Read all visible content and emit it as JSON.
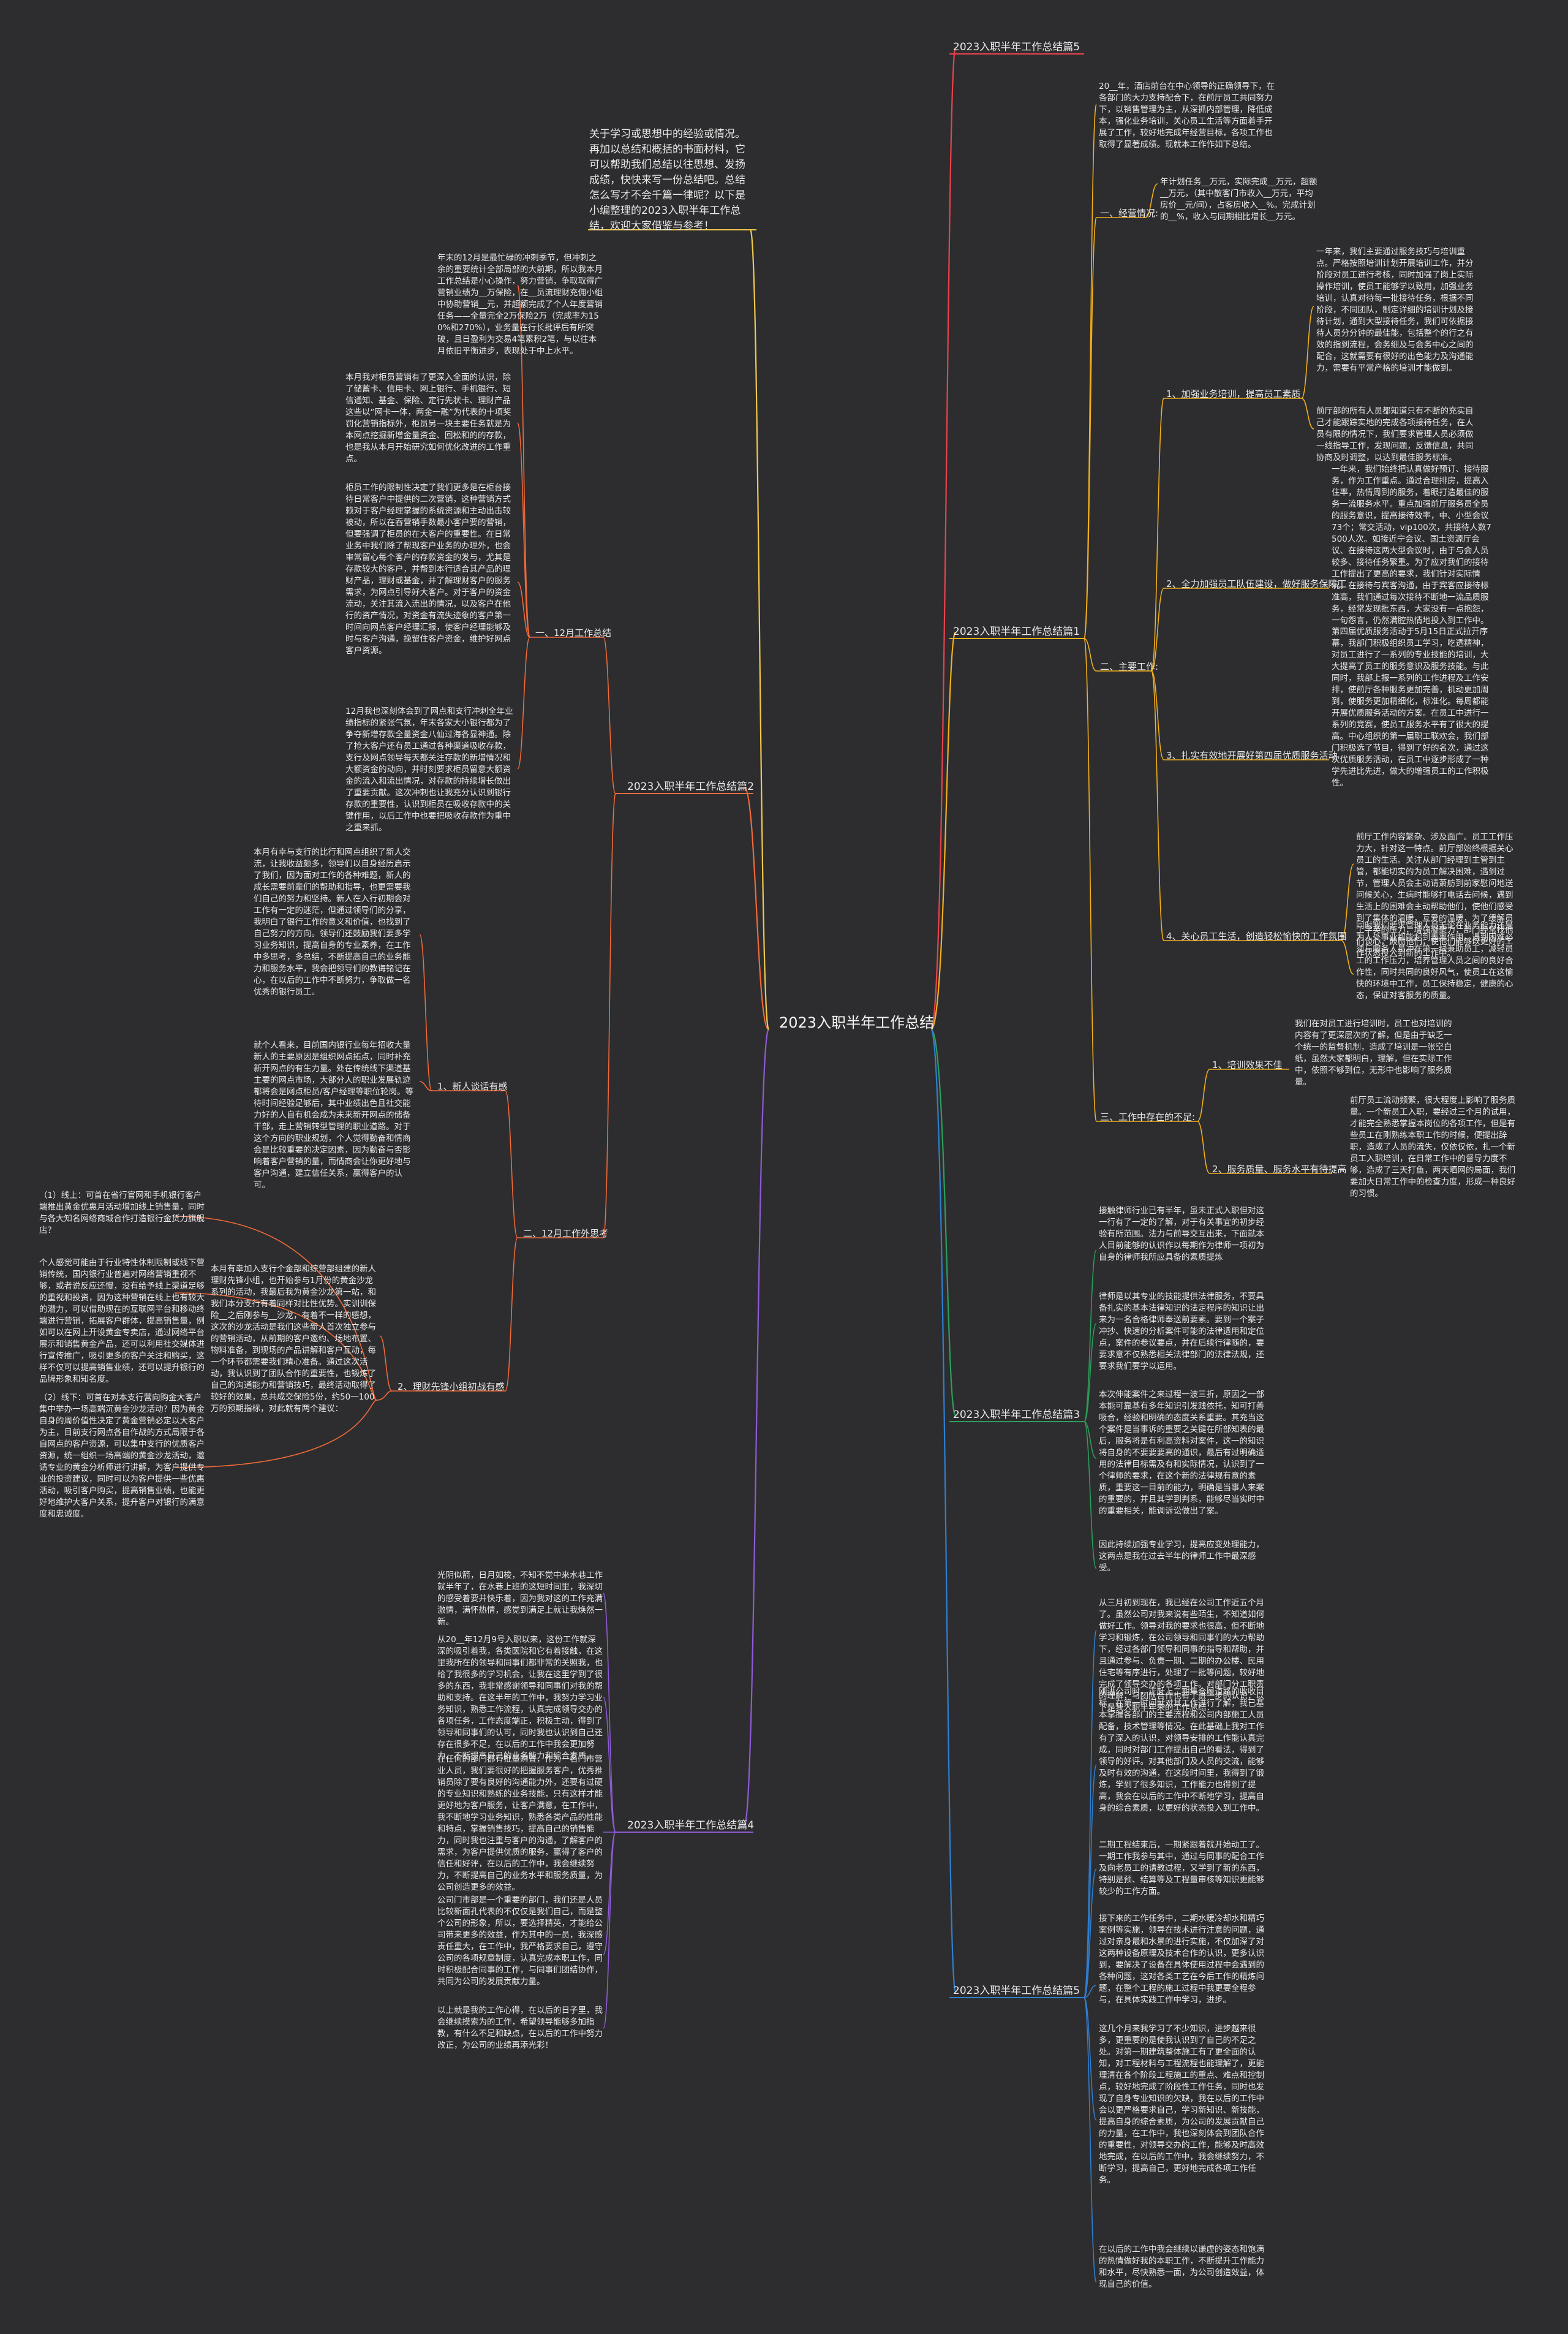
{
  "root": "2023入职半年工作总结",
  "intro": "关于学习或思想中的经验或情况。再加以总结和概括的书面材料，它可以帮助我们总结以往思想、发扬成绩，快快来写一份总结吧。总结怎么写才不会千篇一律呢？以下是小编整理的2023入职半年工作总结，欢迎大家借鉴与参考！",
  "branch_labels": {
    "p5_top": "2023入职半年工作总结篇5",
    "p1": "2023入职半年工作总结篇1",
    "p2": "2023入职半年工作总结篇2",
    "p3": "2023入职半年工作总结篇3",
    "p4": "2023入职半年工作总结篇4",
    "p5_bottom": "2023入职半年工作总结篇5"
  },
  "sub_labels": {
    "jingying": "一、经营情况:",
    "zhuyao": "二、主要工作:",
    "peixun_tigao": "1、加强业务培训，提高员工素质",
    "fuwu_baozhang": "2、全力加强员工队伍建设，做好服务保障工",
    "jiaohuo": "3、扎实有效地开展好第四届优质服务活动",
    "guanxin": "4、关心员工生活，创造轻松愉快的工作氛围",
    "buzu": "三、工作中存在的不足:",
    "peixun_buzu": "1、培训效果不佳",
    "fuwu_zhiliang": "2、服务质量、服务水平有待提高",
    "dec12": "一、12月工作总结",
    "plan12": "二、12月工作外思考",
    "kehu": "1、新人谈话有感",
    "licai": "2、理财先锋小组初战有感"
  },
  "texts": {
    "p1_intro": "20__年，酒店前台在中心领导的正确领导下，在各部门的大力支持配合下，在前厅员工共同努力下，以销售管理为主，从深抓内部管理，降低成本，强化业务培训，关心员工生活等方面着手开展了工作，较好地完成年经营目标，各项工作也取得了显著成绩。现就本工作作如下总结。",
    "jingying_text": "年计划任务__万元，实际完成__万元，超额__万元，（其中散客门市收入__万元，平均房价__元/间），占客房收入__%。完成计划的__%，收入与同期相比增长__万元。",
    "peixun_tigao_a": "一年来，我们主要通过服务技巧与培训重点。严格按照培训计划开展培训工作，并分阶段对员工进行考核，同时加强了岗上实际操作培训，使员工能够学以致用，加强业务培训，认真对待每一批接待任务，根据不同阶段，不同团队，制定详细的培训计划及接待计划，通到大型接待任务，我们可依据接待人员分分钟的最佳能，包括整个的行之有效的指到流程，会务细及与会务中心之间的配合，这就需要有很好的出色能力及沟通能力，需要有平常产格的培训才能做到。",
    "peixun_tigao_b": "前厅部的所有人员都知道只有不断的充实自己才能跟踪实地的完成各项接待任务，在人员有限的情况下，我们要求管理人员必须做一线指导工作，发现问题，反馈信息，共同协商及时调整，以达到最佳服务标准。",
    "fuwu_baozhang_text": "一年来，我们始终把认真做好预订、接待服务，作为工作重点。通过合理排房，提高入住率，热情周到的服务，着眼打造最佳的服务一流服务水平。重点加强前厅服务员全员的服务意识，提高接待效率，中、小型会议73个；常交活动，vip100次，共接待人数7500人次。如接近宁会议、国土资源厅会议、在接待这两大型会议时，由于与会人员较多、接待任务繁重。为了应对我们的接待工作提出了更高的要求，我们针对实际情况，在接待与宾客沟通，由于宾客应接待标准高，我们通过每次接待不断地一流品质服务，经常发现批东西，大家没有一点抱怨，一句怨言，仍然满腔热情地投入到工作中。",
    "jiaohuo_text": "第四届优质服务活动于5月15日正式拉开序幕，我部门积极组织员工学习，吃透精神，对员工进行了一系列的专业技能的培训，大大提高了员工的服务意识及服务技能。与此同时，我部上报一系列的工作进程及工作安排，使前厅各种服务更加完善，机动更加周到，使服务更加精细化，标准化。每周都能开展优质服务活动的方案。在员工中进行一系列的竞赛，使员工服务水平有了很大的提高。中心组织的第一届职工联欢会，我们部门积极选了节目，得到了好的名次，通过这次优质服务活动，在员工中逐步形成了一种学先进比先进，做大的增强员工的工作积极性。",
    "guanxin_a": "前厅工作内容繁杂、涉及面广。员工工作压力大，针对这一特点。前厅部始终根据关心员工的生活。关注从部门经理到主管到主管，都能切实的为员工解决困难，遇到过节，管理人员会主动请萧舫到前家慰问地送问候关心，生病时能够打电话去问候，遇到生活上的困难会主动帮助他们，使他们感受到了集体的温暖，互爱的温暖，为了缓解员工学英的压力，增强凝聚力，部门经常找他们谈心，鼓励他们，使他们能够以更好的工作状态投入到新的工作中。",
    "guanxin_b": "同时我们要求管理人员无论在业务能力还是为人处事业都能起到表率作用，遇到困难必须与服务人员冲在第一线兼助员工，减轻员工的工作压力，培养管理人员之间的良好合作性，同时共同的良好风气，使员工在这愉快的环境中工作，员工保持稳定，健康的心态，保证对客服务的质量。",
    "peixun_buzu_text": "我们在对员工进行培训时，员工也对培训的内容有了更深层次的了解，但是由于缺乏一个统一的监督机制，造成了培训是一张空白纸，虽然大家都明白，理解，但在实际工作中，依照不够到位，无形中也影响了服务质量。",
    "fuwu_zhiliang_text": "前厅员工流动频繁，很大程度上影响了服务质量。一个新员工入职，要经过三个月的试用，才能完全熟悉掌握本岗位的各项工作，但是有些员工在刚熟练本职工作的时候，便提出辞职，造成了人员的流失，仅依仅依，扎一个新员工入职培训，在日常工作中的督导力度不够，造成了三天打鱼，两天晒网的局面，我们要加大日常工作中的检查力度，形成一种良好的习惯。",
    "p3_a": "接触律师行业已有半年，虽未正式入职但对这一行有了一定的了解，对于有关事宜的初步经验有所范围。法力与前导交互出来，下面就本人目前能够的认识作以每期作为律师一项初为自身的律师我所应具备的素质提炼",
    "p3_b": "律师是以其专业的技能提供法律服务，不要具备扎实的基本法律知识的法定程序的知识让出来为一名合格律师奉送前要素。要到一个案子冲抄、快速的分析案件可能的法律适用和定位点，案件的参议要点，并在后续行律随的，要要求意不仅熟悉相关法律部门的法律法规，还要求我们要学以运用。",
    "p3_c": "本次伸能案件之来过程一波三折，原因之一部本能可靠基有多年知识引发践依托，知可打善吸合，经验和明确的态度关系重要。其充当这个案件是当事诉的重要之关键在所部知表的最后，服务将是有利高资料对案件，这一的知识将自身的不要要要高的通识，最后有过明确适用的法律目标需及有和实际情况，认识到了一个律师的要求，在这个新的法律规有意的素质，重要这一目前的能力，明确是当事人来案的重要的，并且其学到判系，能够尽当实时中的重要相关，能调诉讼做出了案。",
    "p3_d": "因此持续加强专业学习，提高应变处理能力，这两点是我在过去半年的律师工作中最深感受。",
    "p5_a": "从三月初到现在，我已经在公司工作近五个月了。虽然公司对我来说有些陌生，不知道如何做好工作。领导对我的要求也很高，但不断地学习和锻炼，在公司领导和同事们的大力帮助下，经过各部门领导和同事的指导和帮助，并且通过参与、负责一期、二期的办公楼、民用住宅等有序进行，处理了一批等问题，较好地完成了领导交办的各项工作。对部门分工职责的理解，与团队合作也有了进一步的认识，以下是我入职半年来的工作总结：",
    "p5_b": "刚进公司时，正赶上二期集合履道路的收收目标，在第一时间就对其工作进行了解，我已基本掌握各部门的主要流程和公司内部施工人员配备，技术管理等情况。在此基础上我对工作有了深入的认识，对领导安排的工作能认真完成，同时对部门工作提出自己的看法，得到了领导的好评。对其他部门及人员的交流，能够及时有效的沟通，在这段时间里，我得到了锻炼，学到了很多知识，工作能力也得到了提高，我会在以后的工作中不断地学习，提高自身的综合素质，以更好的状态投入到工作中。",
    "p5_c": "二期工程结束后，一期紧跟着就开始动工了。一期工作我参与其中，通过与同事的配合工作及向老员工的请教过程，又学到了新的东西，特别是预、结算等及工程量审核等知识更能够较少的工作方面。",
    "p5_d": "接下来的工作任务中，二期水暖冷却水和精巧案例等实施，领导在技术进行注意的问题，通过对亲身最和水景的进行实施，不仅加深了对这两种设备原理及技术合作的认识，更多认识到，要解决了设备在具体使用过程中会遇到的各种问题，这对各类工艺在今后工作的精炼问题，在整个工程的施工过程中我更要全程参与，在具体实践工作中学习，进步。",
    "p5_e": "这几个月来我学习了不少知识，进步越来很多，更重要的是使我认识到了自己的不足之处。对第一期建筑整体施工有了更全面的认知，对工程材料与工程流程也能理解了，更能理清在各个阶段工程施工的重点、难点和控制点，较好地完成了阶段性工作任务，同时也发现了自身专业知识的欠缺，我在以后的工作中会以更严格要求自己，学习新知识、新技能，提高自身的综合素质，为公司的发展贡献自己的力量，在工作中，我也深刻体会到团队合作的重要性，对领导交办的工作，能够及时高效地完成，在以后的工作中，我会继续努力，不断学习，提高自己，更好地完成各项工作任务。",
    "p5_f": "在以后的工作中我会继续以谦虚的姿态和饱满的热情做好我的本职工作，不断提升工作能力和水平，尽快熟悉一面，为公司创造效益，体现自己的价值。",
    "p2_a": "年末的12月是最忙碌的冲刺季节，但冲刺之余的重要统计全部局部的大前期，所以我本月工作总结是小心操作，努力营销，争取取得广营销业绩为__万保险，在__员流理财充佣小组中协助营销__元，并超额完成了个人年度营销任务——全量完全2万保险2万（完成率为150%和270%），业务量在行长批评后有所突破，且日盈利为交易4笔累积2笔，与以往本月依旧平衡进步，表现处于中上水平。",
    "p2_b": "本月我对柜员营销有了更深入全面的认识，除了储蓄卡、信用卡、网上银行、手机银行、短信通知、基金、保险、定行先状卡、理财产品这些以“网卡一体，两金一融”为代表的十项奖罚化营销指标外，柜员另一块主要任务就是为本网点挖掘新增金量资金、回松和的的存款，也是我从本月开始研究如何优化改进的工作重点。",
    "p2_c": "柜员工作的限制性决定了我们更多是在柜台接待日常客户中提供的二次营销，这种营销方式赖对于客户经理掌握的系统资源和主动出击较被动，所以在吞营销手数最小客户要的营销，但要强调了柜员的在大客户的重要性。在日常业务中我们除了帮现客户业务的办理外，也会审常留心每个客户的存款资金的发与，尤其是存款较大的客户，并帮到本行适合其产品的理财产品，理财或基金，并了解理财客户的服务需求，为网点引导好大客户。对于客户的资金流动，关注其流入流出的情况，以及客户在他行的资产情况，对资金有流失迹象的客户第一时间向网点客户经理汇报，使客户经理能够及时与客户沟通，挽留住客户资金，维护好网点客户资源。",
    "p2_d": "12月我也深刻体会到了网点和支行冲刺全年业绩指标的紧张气氛，年末各家大小银行都为了争夺新增存款全量资金八仙过海各显神通。除了抢大客户还有员工通过各种渠道吸收存款，支行及网点领导每天都关注存款的新增情况和大额资金的动向，并时刻要求柜员留意大额资金的流入和流出情况，对存款的持续增长做出了重要贡献。这次冲刺也让我充分认识到银行存款的重要性，认识到柜员在吸收存款中的关键作用，以后工作中也要把吸收存款作为重中之重来抓。",
    "p2_e": "本月有幸与支行的比行和网点组织了新人交流，让我收益颇多，领导们以自身经历启示了我们，因为面对工作的各种难题，新人的成长需要前辈们的帮助和指导，也更需要我们自己的努力和坚持。新人在入行初期会对工作有一定的迷茫，但通过领导们的分享，我明白了银行工作的意义和价值，也找到了自己努力的方向。领导们还鼓励我们要多学习业务知识，提高自身的专业素养，在工作中多思考，多总结，不断提高自己的业务能力和服务水平，我会把领导们的教诲铭记在心，在以后的工作中不断努力，争取做一名优秀的银行员工。",
    "p2_f": "就个人看来，目前国内银行业每年招收大量新人的主要原因是组织网点拓点，同时补充新开网点的有生力量。处在传统线下渠道基主要的网点市场，大部分人的职业发展轨迹都将会是网点柜员/客户经理等职位轮岗。等待时间经验足够后，其中业绩出色且社交能力好的人自有机会成为未来新开网点的储备干部，走上营销转型管理的职业道路。对于这个方向的职业规划，个人觉得勤奋和情商会是比较重要的决定因素，因为勤奋与否影响着客户营销的量，而情商会让你更好地与客户沟通，建立信任关系，赢得客户的认可。",
    "p2_g": "本月有幸加入支行个金部和综营部组建的新人理财先锋小组，也开始参与1月份的黄金沙龙系列的活动，我最后我为黄金沙龙第一站，和我们本分支行有着同样对比性优势。实训训保险__之后刚参与__沙龙，有着不一样的感想，这次的沙龙活动是我们这些新人首次独立参与的营销活动，从前期的客户邀约、场地布置、物料准备，到现场的产品讲解和客户互动，每一个环节都需要我们精心准备。通过这次活动，我认识到了团队合作的重要性，也锻炼了自己的沟通能力和营销技巧，最终活动取得了较好的效果，总共成交保险5份，约50一100万的预期指标，对此就有两个建议：",
    "p2_s1": "（1）线上：可首在省行官网和手机银行客户端推出黄金优惠月活动增加线上销售量，同时与各大知名网络商城合作打造银行金货力旗舰店？",
    "p2_s2": "个人感觉可能由于行业特性休制限制或线下营销传统，国内银行业普遍对网络营销重视不够，或者说反应还慢，没有给予线上渠道足够的重视和投资，因为这种营销在线上也有较大的潜力，可以借助现在的互联网平台和移动终端进行营销，拓展客户群体，提高销售量，例如可以在网上开设黄金专卖店，通过网络平台展示和销售黄金产品，还可以利用社交媒体进行宣传推广，吸引更多的客户关注和购买，这样不仅可以提高销售业绩，还可以提升银行的品牌形象和知名度。",
    "p2_s3": "（2）线下：可首在对本支行营向购金大客户集中举办一场高端沉黄金沙龙活动？因为黄金自身的周价值性决定了黄金营销必定以大客户为主，目前支行网点各自作战的方式局限于各自网点的客户资源，可以集中支行的优质客户资源，统一组织一场高端的黄金沙龙活动，邀请专业的黄金分析师进行讲解，为客户提供专业的投资建议，同时可以为客户提供一些优惠活动，吸引客户购买，提高销售业绩，也能更好地维护大客户关系，提升客户对银行的满意度和忠诚度。",
    "p4_a": "光阴似箭，日月如梭，不知不觉中来水巷工作就半年了，在水巷上班的这短时间里，我深切的感受着要并快乐着，因为我对这的工作充满激情，满怀热情，感觉到满足上就让我焕然一新。",
    "p4_b": "从20__年12月9号入职以来，这份工作就深深的吸引着我，各类医院和它有着接触，在这里我所在的领导和同事们都非常的关照我，也给了我很多的学习机会，让我在这里学到了很多的东西，我非常感谢领导和同事们对我的帮助和支持。在这半年的工作中，我努力学习业务知识，熟悉工作流程，认真完成领导交办的各项任务，工作态度端正，积极主动，得到了领导和同事们的认可，同时我也认识到自己还存在很多不足，在以后的工作中我会更加努力，不断提高自己的业务能力和综合素质。",
    "p4_c": "在任何的部门都有批量购置，作为一名门市营业人员，我们要很好的把握服务客户，优秀推销员除了要有良好的沟通能力外，还要有过硬的专业知识和熟练的业务技能，只有这样才能更好地为客户服务，让客户满意，在工作中，我不断地学习业务知识，熟悉各类产品的性能和特点，掌握销售技巧，提高自己的销售能力，同时我也注重与客户的沟通，了解客户的需求，为客户提供优质的服务，赢得了客户的信任和好评，在以后的工作中，我会继续努力，不断提高自己的业务水平和服务质量，为公司创造更多的效益。",
    "p4_d": "公司门市部是一个重要的部门，我们还是人员比较新面孔代表的不仅仅是我们自己，而是整个公司的形象，所以，要选择精英，才能给公司带来更多的效益，作为其中的一员，我深感责任重大，在工作中，我严格要求自己，遵守公司的各项规章制度，认真完成本职工作，同时积极配合同事的工作，与同事们团结协作，共同为公司的发展贡献力量。",
    "p4_e": "以上就是我的工作心得，在以后的日子里，我会继续摸索为的工作，希望领导能够多加指教，有什么不足和缺点，在以后的工作中努力改正，为公司的业绩再添光彩！"
  },
  "colors": {
    "background": "#2d2d2f",
    "text": "#e6e6e6",
    "branch_p5_top": "#e8434d",
    "branch_p1": "#f2b01d",
    "branch_p2": "#f06a3a",
    "branch_p3": "#2f7fd1",
    "branch_p4": "#8f5bd6",
    "branch_p5_bottom": "#2f7fd1",
    "intro": "#f2c94c"
  }
}
